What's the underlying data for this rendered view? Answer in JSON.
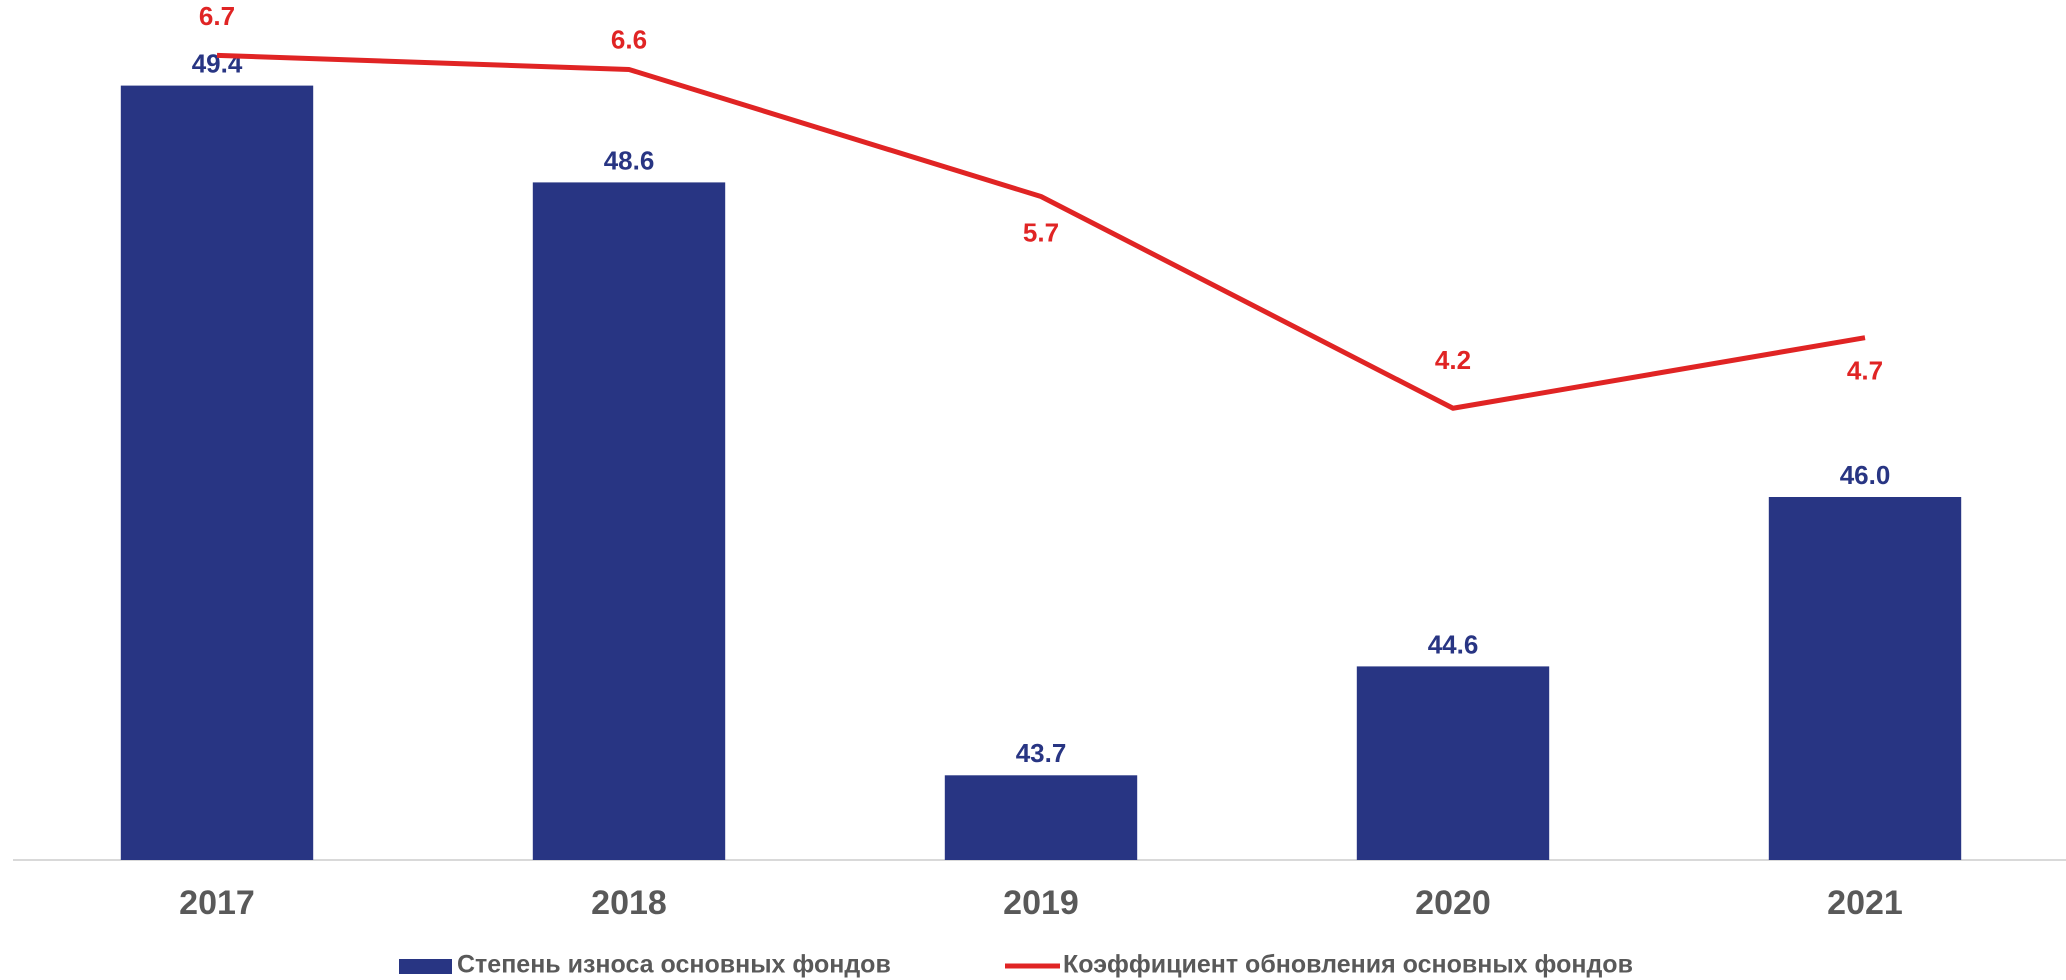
{
  "chart_data": {
    "type": "bar_line",
    "categories": [
      "2017",
      "2018",
      "2019",
      "2020",
      "2021"
    ],
    "series": [
      {
        "name": "Степень износа основных фондов",
        "type": "bar",
        "color": "#283583",
        "values": [
          49.4,
          48.6,
          43.7,
          44.6,
          46.0
        ],
        "value_labels": [
          "49.4",
          "48.6",
          "43.7",
          "44.6",
          "46.0"
        ]
      },
      {
        "name": "Коэффициент обновления основных фондов",
        "type": "line",
        "axis": "y2",
        "color": "#e02424",
        "values": [
          6.7,
          6.6,
          5.7,
          4.2,
          4.7
        ]
      }
    ],
    "ylim": [
      43,
      50
    ],
    "y2lim": [
      1,
      7
    ],
    "legend": "bottom",
    "grid": false
  }
}
